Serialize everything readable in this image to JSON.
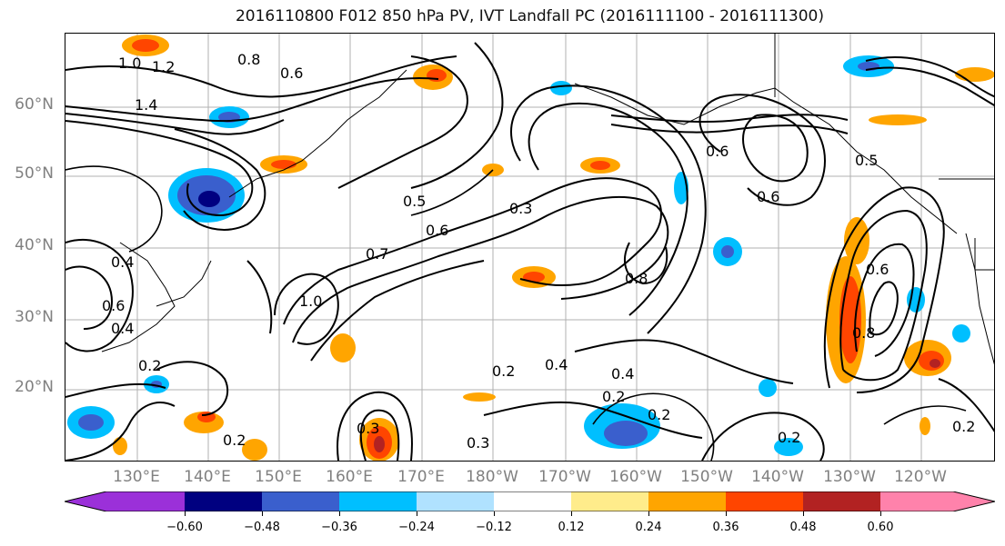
{
  "title": "2016110800 F012 850 hPa PV, IVT Landfall PC (2016111100 - 2016111300)",
  "lat_labels": [
    "60°N",
    "50°N",
    "40°N",
    "30°N",
    "20°N"
  ],
  "lon_labels": [
    "130°E",
    "140°E",
    "150°E",
    "160°E",
    "170°E",
    "180°W",
    "170°W",
    "160°W",
    "150°W",
    "140°W",
    "130°W",
    "120°W"
  ],
  "contour_labels": [
    "0.8",
    "0.6",
    "1.2",
    "1.0",
    "1.4",
    "0.5",
    "0.3",
    "0.6",
    "0.7",
    "0.6",
    "0.4",
    "0.2",
    "0.2",
    "0.3",
    "0.2",
    "0.4",
    "0.2",
    "0.4",
    "0.2",
    "0.6",
    "0.6",
    "0.5",
    "0.8",
    "0.6",
    "0.2",
    "0.3",
    "0.2",
    "0.4",
    "1.0",
    "0.8"
  ],
  "colorbar": {
    "colors": [
      "#9b30d9",
      "#000080",
      "#3a5fcd",
      "#00bfff",
      "#b0e2ff",
      "#ffffff",
      "#ffec8b",
      "#ffa500",
      "#ff4500",
      "#b22222",
      "#ff82ab"
    ],
    "tick_labels": [
      "−0.60",
      "−0.48",
      "−0.36",
      "−0.24",
      "−0.12",
      "0.12",
      "0.24",
      "0.36",
      "0.48",
      "0.60"
    ]
  }
}
